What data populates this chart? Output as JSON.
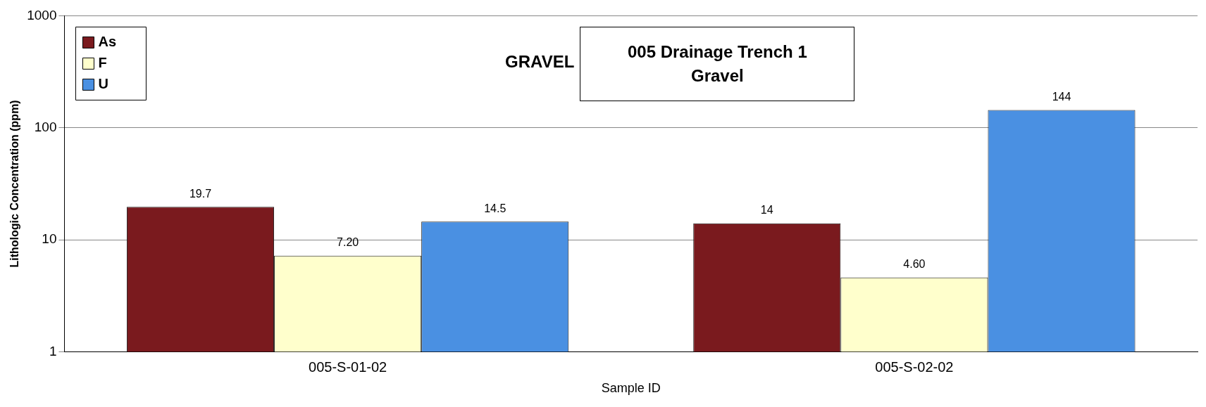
{
  "chart_data": {
    "type": "bar",
    "title": "GRAVEL",
    "xlabel": "Sample ID",
    "ylabel": "Lithologic Concentration (ppm)",
    "categories": [
      "005-S-01-02",
      "005-S-02-02"
    ],
    "series": [
      {
        "name": "As",
        "color": "#7a1a1e",
        "values": [
          19.7,
          14
        ],
        "value_labels": [
          "19.7",
          "14"
        ]
      },
      {
        "name": "F",
        "color": "#ffffcc",
        "values": [
          7.2,
          4.6
        ],
        "value_labels": [
          "7.20",
          "4.60"
        ]
      },
      {
        "name": "U",
        "color": "#4a90e2",
        "values": [
          14.5,
          144
        ],
        "value_labels": [
          "14.5",
          "144"
        ]
      }
    ],
    "log": "y",
    "ylim": [
      1,
      1000
    ],
    "yticks": [
      1,
      10,
      100,
      1000
    ],
    "grid": "y",
    "legend": "top left",
    "annotations": [
      "005 Drainage Trench 1\nGravel"
    ]
  }
}
